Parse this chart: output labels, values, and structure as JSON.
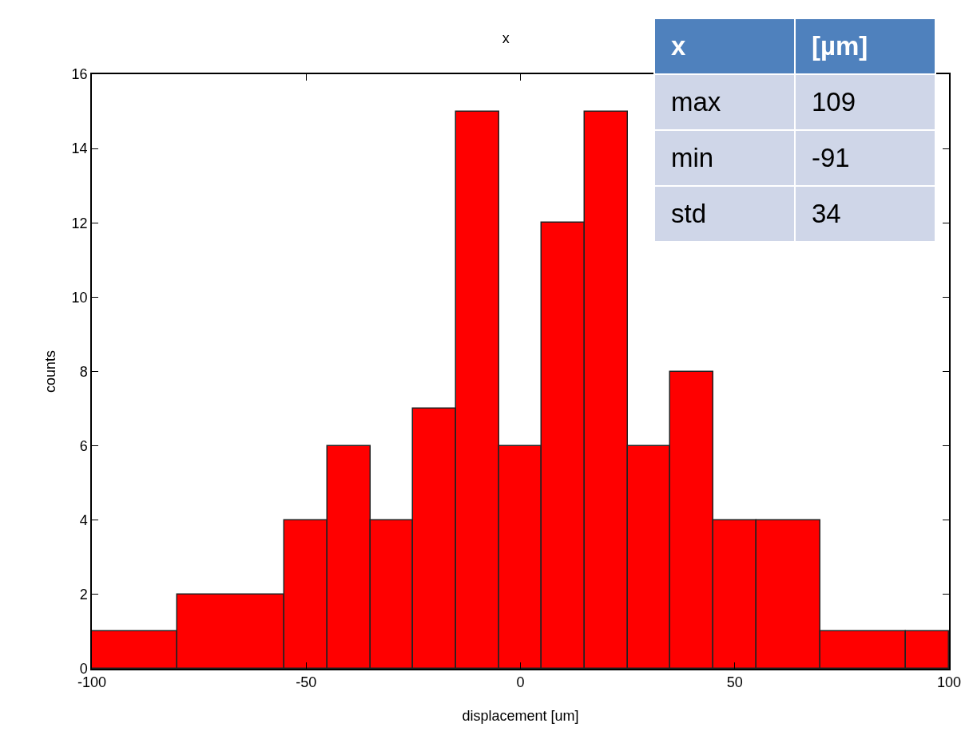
{
  "chart_data": {
    "type": "histogram",
    "title": "x",
    "xlabel": "displacement [um]",
    "ylabel": "counts",
    "bins": [
      -100,
      -80,
      -55,
      -45,
      -35,
      -25,
      -15,
      -5,
      5,
      15,
      25,
      35,
      45,
      55,
      70,
      90,
      100
    ],
    "values": [
      1,
      2,
      4,
      6,
      4,
      7,
      15,
      6,
      12,
      15,
      6,
      8,
      4,
      4,
      1,
      1
    ],
    "color": "#ff0000",
    "xlim": [
      -100,
      100
    ],
    "xticks": [
      -100,
      -50,
      0,
      50,
      100
    ],
    "ylim": [
      0,
      16
    ],
    "yticks": [
      0,
      2,
      4,
      6,
      8,
      10,
      12,
      14,
      16
    ],
    "annotations": [
      "x",
      "[µm]",
      "max",
      "109",
      "min",
      "-91",
      "std",
      "34"
    ]
  }
}
